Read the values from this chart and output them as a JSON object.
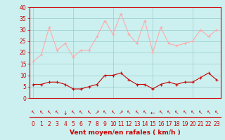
{
  "xlabel": "Vent moyen/en rafales ( km/h )",
  "hours": [
    0,
    1,
    2,
    3,
    4,
    5,
    6,
    7,
    8,
    9,
    10,
    11,
    12,
    13,
    14,
    15,
    16,
    17,
    18,
    19,
    20,
    21,
    22,
    23
  ],
  "avg_wind": [
    6,
    6,
    7,
    7,
    6,
    4,
    4,
    5,
    6,
    10,
    10,
    11,
    8,
    6,
    6,
    4,
    6,
    7,
    6,
    7,
    7,
    9,
    11,
    8
  ],
  "gust_wind": [
    16,
    19,
    31,
    21,
    24,
    18,
    21,
    21,
    27,
    34,
    28,
    37,
    28,
    24,
    34,
    20,
    31,
    24,
    23,
    24,
    25,
    30,
    27,
    30
  ],
  "avg_color": "#cc0000",
  "gust_color": "#ffaaaa",
  "bg_color": "#ccf0f0",
  "grid_color": "#99cccc",
  "axis_color": "#cc0000",
  "ylim": [
    0,
    40
  ],
  "yticks": [
    0,
    5,
    10,
    15,
    20,
    25,
    30,
    35,
    40
  ],
  "wind_arrows": [
    "↖",
    "↖",
    "↖",
    "↖",
    "↓",
    "↖",
    "↖",
    "↖",
    "↗",
    "↖",
    "↖",
    "↗",
    "↖",
    "↖",
    "↖",
    "←",
    "↖",
    "↖",
    "↖",
    "↖",
    "↖",
    "↖",
    "↖",
    "↖"
  ]
}
